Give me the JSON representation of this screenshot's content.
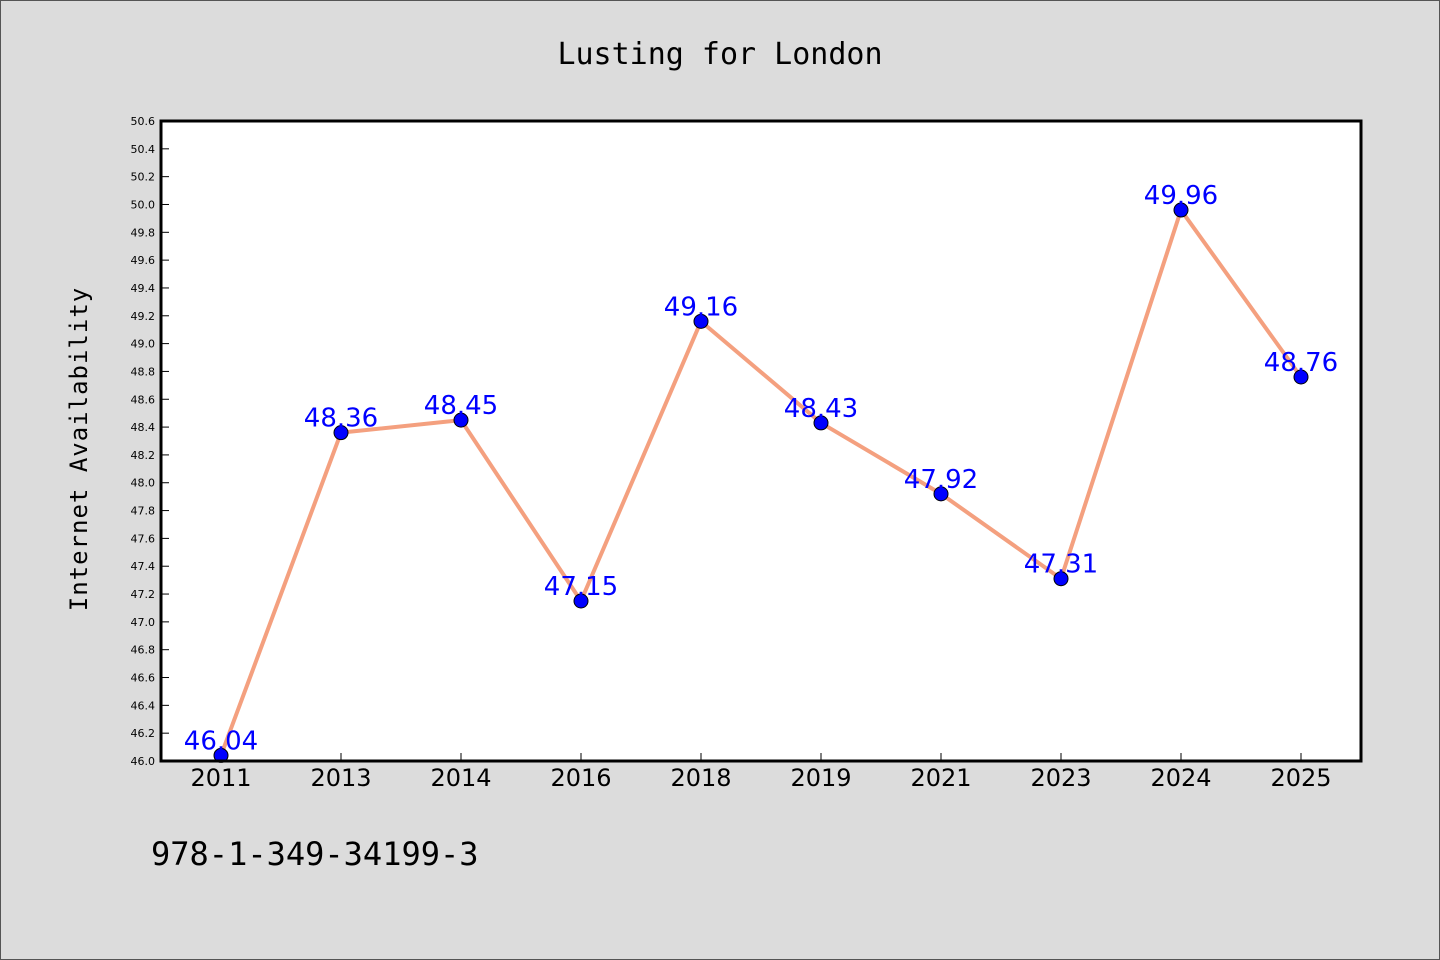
{
  "chart_data": {
    "type": "line",
    "title": "Lusting for London",
    "xlabel": "",
    "ylabel": "Internet Availability",
    "categories": [
      "2011",
      "2013",
      "2014",
      "2016",
      "2018",
      "2019",
      "2021",
      "2023",
      "2024",
      "2025"
    ],
    "series": [
      {
        "values": [
          46.04,
          48.36,
          48.45,
          47.15,
          49.16,
          48.43,
          47.92,
          47.31,
          49.96,
          48.76
        ],
        "labels": [
          "46.04",
          "48.36",
          "48.45",
          "47.15",
          "49.16",
          "48.43",
          "47.92",
          "47.31",
          "49.96",
          "48.76"
        ],
        "line_color": "#f4a07f",
        "marker_color": "#0000ff"
      }
    ],
    "ylim": [
      46.0,
      50.6
    ],
    "yticks": [
      "46.0",
      "46.2",
      "46.4",
      "46.6",
      "46.8",
      "47.0",
      "47.2",
      "47.4",
      "47.6",
      "47.8",
      "48.0",
      "48.2",
      "48.4",
      "48.6",
      "48.8",
      "49.0",
      "49.2",
      "49.4",
      "49.6",
      "49.8",
      "50.0",
      "50.2",
      "50.4",
      "50.6"
    ],
    "grid": false,
    "legend": "none"
  },
  "footer_text": "978-1-349-34199-3",
  "colors": {
    "background": "#dcdcdc",
    "plot_background": "#ffffff",
    "line": "#f4a07f",
    "marker": "#0000ff",
    "data_label": "#0000ff"
  }
}
